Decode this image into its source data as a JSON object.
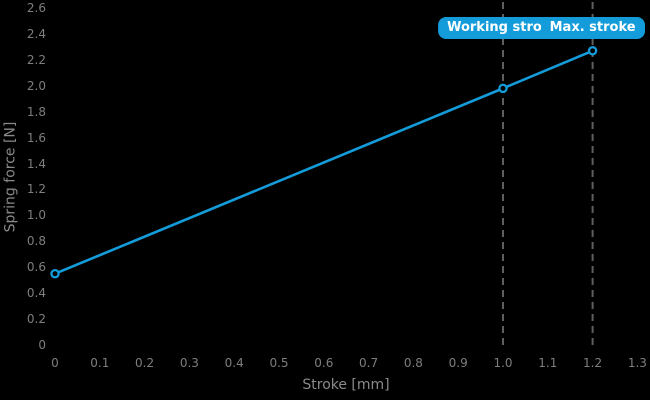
{
  "chart_data": {
    "type": "line",
    "title": "",
    "xlabel": "Stroke [mm]",
    "ylabel": "Spring force [N]",
    "xlim": [
      0,
      1.3
    ],
    "ylim": [
      0,
      2.6
    ],
    "grid": false,
    "background": "#000000",
    "x_ticks": [
      0,
      0.1,
      0.2,
      0.3,
      0.4,
      0.5,
      0.6,
      0.7,
      0.8,
      0.9,
      1.0,
      1.1,
      1.2,
      1.3
    ],
    "x_tick_labels": [
      "0",
      "0.1",
      "0.2",
      "0.3",
      "0.4",
      "0.5",
      "0.6",
      "0.7",
      "0.8",
      "0.9",
      "1.0",
      "1.1",
      "1.2",
      "1.3"
    ],
    "y_ticks": [
      0,
      0.2,
      0.4,
      0.6,
      0.8,
      1.0,
      1.2,
      1.4,
      1.6,
      1.8,
      2.0,
      2.2,
      2.4,
      2.6
    ],
    "y_tick_labels": [
      "0",
      "0.2",
      "0.4",
      "0.6",
      "0.8",
      "1.0",
      "1.2",
      "1.4",
      "1.6",
      "1.8",
      "2.0",
      "2.2",
      "2.4",
      "2.6"
    ],
    "series": [
      {
        "x": [
          0,
          1.0,
          1.2
        ],
        "y": [
          0.55,
          1.98,
          2.27
        ],
        "color": "#149cda",
        "marker": "open-circle"
      }
    ],
    "annotations": [
      {
        "label": "Working stroke",
        "x": 1.0,
        "line_style": "dashed"
      },
      {
        "label": "Max. stroke",
        "x": 1.2,
        "line_style": "dashed"
      }
    ],
    "colors": {
      "accent": "#149cda",
      "tick_text": "#7e7e7e",
      "axis_text": "#8a8a8a",
      "dashed_line": "#5f5f5f",
      "badge_text": "#ffffff"
    }
  }
}
